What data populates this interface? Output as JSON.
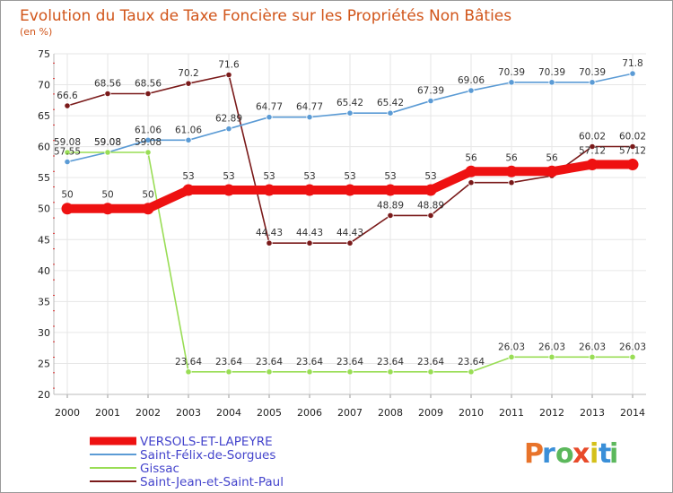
{
  "chart_data": {
    "type": "line",
    "title": "Evolution du Taux de Taxe Foncière sur les Propriétés Non Bâties",
    "ylabel": "(en %)",
    "xlabel": "",
    "ylim": [
      20,
      75
    ],
    "yticks": [
      20,
      25,
      30,
      35,
      40,
      45,
      50,
      55,
      60,
      65,
      70,
      75
    ],
    "categories": [
      "2000",
      "2001",
      "2002",
      "2003",
      "2004",
      "2005",
      "2006",
      "2007",
      "2008",
      "2009",
      "2010",
      "2011",
      "2012",
      "2013",
      "2014"
    ],
    "series": [
      {
        "name": "Saint-Jean-et-Saint-Paul",
        "color": "#7a1a1a",
        "values": [
          66.6,
          68.56,
          68.56,
          70.2,
          71.6,
          44.43,
          44.43,
          44.43,
          48.89,
          48.89,
          54.2,
          54.2,
          55.3,
          60.02,
          60.02
        ],
        "labels": [
          "66.6",
          "68.56",
          "68.56",
          "70.2",
          "71.6",
          "44.43",
          "44.43",
          "44.43",
          "48.89",
          "48.89",
          "",
          "",
          "",
          "60.02",
          "60.02"
        ]
      },
      {
        "name": "Saint-Félix-de-Sorgues",
        "color": "#5b9bd5",
        "values": [
          57.55,
          59.08,
          61.06,
          61.06,
          62.89,
          64.77,
          64.77,
          65.42,
          65.42,
          67.39,
          69.06,
          70.39,
          70.39,
          70.39,
          71.8
        ],
        "labels": [
          "57.55",
          "59.08",
          "61.06",
          "61.06",
          "62.89",
          "64.77",
          "64.77",
          "65.42",
          "65.42",
          "67.39",
          "69.06",
          "70.39",
          "70.39",
          "70.39",
          "71.8"
        ]
      },
      {
        "name": "Gissac",
        "color": "#99dd55",
        "values": [
          59.08,
          59.08,
          59.08,
          23.64,
          23.64,
          23.64,
          23.64,
          23.64,
          23.64,
          23.64,
          23.64,
          26.03,
          26.03,
          26.03,
          26.03
        ],
        "labels": [
          "59.08",
          "59.08",
          "59.08",
          "23.64",
          "23.64",
          "23.64",
          "23.64",
          "23.64",
          "23.64",
          "23.64",
          "23.64",
          "26.03",
          "26.03",
          "26.03",
          "26.03"
        ]
      },
      {
        "name": "VERSOLS-ET-LAPEYRE",
        "color": "#ee1111",
        "values": [
          50,
          50,
          50,
          53,
          53,
          53,
          53,
          53,
          53,
          53,
          56,
          56,
          56,
          57.12,
          57.12
        ],
        "labels": [
          "50",
          "50",
          "50",
          "53",
          "53",
          "53",
          "53",
          "53",
          "53",
          "53",
          "56",
          "56",
          "56",
          "57.12",
          "57.12"
        ]
      }
    ],
    "legend": [
      "VERSOLS-ET-LAPEYRE",
      "Saint-Félix-de-Sorgues",
      "Gissac",
      "Saint-Jean-et-Saint-Paul"
    ],
    "legend_position": "bottom-left"
  },
  "brand": {
    "letters": [
      "P",
      "r",
      "o",
      "x",
      "i",
      "t",
      "i"
    ],
    "colors": [
      "#e8732a",
      "#3a8fd8",
      "#5cb85c",
      "#e84a2a",
      "#d4c01a",
      "#3a8fd8",
      "#5cb85c"
    ]
  }
}
